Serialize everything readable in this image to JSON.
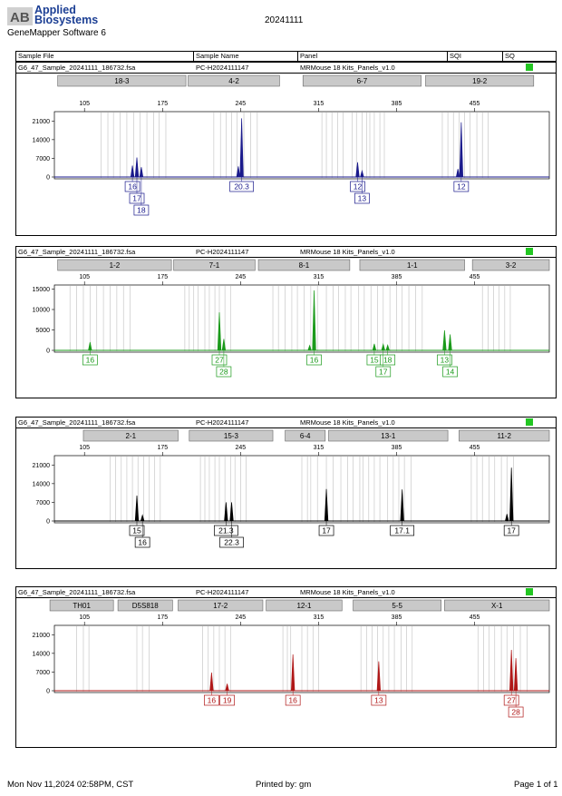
{
  "header": {
    "brand_mark": "AB",
    "brand_line1": "Applied",
    "brand_line2": "Biosystems",
    "software": "GeneMapper Software 6",
    "run_date": "20241111",
    "columns": [
      "Sample File",
      "Sample Name",
      "Panel",
      "SQI",
      "SQ"
    ]
  },
  "footer": {
    "timestamp": "Mon Nov 11,2024 02:58PM, CST",
    "printed_by": "Printed by: gm",
    "page": "Page 1 of 1"
  },
  "colors": {
    "blue": "#1a1a8c",
    "green": "#1b9a1b",
    "black": "#000000",
    "red": "#b01818",
    "status_ok": "#22c622",
    "bin_line": "#c8c8c8"
  },
  "chart_data": [
    {
      "type": "line",
      "dye": "blue",
      "sample_file": "G6_47_Sample_20241111_186732.fsa",
      "sample_name": "PC-H2024111147",
      "panel": "MRMouse 18 Kits_Panels_v1.0",
      "x_ticks": [
        105,
        175,
        245,
        315,
        385,
        455
      ],
      "xlim": [
        78,
        522
      ],
      "y_ticks": [
        0,
        7000,
        14000,
        21000
      ],
      "ylim": [
        0,
        24500
      ],
      "markers": [
        {
          "label": "18-3",
          "start": 81,
          "end": 196
        },
        {
          "label": "4-2",
          "start": 198,
          "end": 280
        },
        {
          "label": "6-7",
          "start": 301,
          "end": 407
        },
        {
          "label": "19-2",
          "start": 411,
          "end": 508
        }
      ],
      "bins": [
        120,
        126,
        131,
        137,
        143,
        149,
        155,
        161,
        167,
        172,
        178,
        221,
        227,
        232,
        237,
        242,
        248,
        254,
        260,
        318,
        322,
        327,
        332,
        337,
        345,
        349,
        354,
        358,
        361,
        365,
        370,
        374,
        426,
        431,
        436,
        441,
        446,
        451,
        457,
        462,
        467
      ],
      "peaks": [
        {
          "x": 148,
          "height": 4300
        },
        {
          "x": 152,
          "height": 7300
        },
        {
          "x": 156,
          "height": 3700
        },
        {
          "x": 243,
          "height": 4000
        },
        {
          "x": 246,
          "height": 22000
        },
        {
          "x": 350,
          "height": 5500
        },
        {
          "x": 354,
          "height": 2300
        },
        {
          "x": 440,
          "height": 3000
        },
        {
          "x": 443,
          "height": 20500
        }
      ],
      "alleles": [
        {
          "label": "16",
          "x": 148,
          "row": 0
        },
        {
          "label": "17",
          "x": 152,
          "row": 1
        },
        {
          "label": "18",
          "x": 156,
          "row": 2
        },
        {
          "label": "20.3",
          "x": 246,
          "row": 0
        },
        {
          "label": "12",
          "x": 350,
          "row": 0
        },
        {
          "label": "13",
          "x": 354,
          "row": 1
        },
        {
          "label": "12",
          "x": 443,
          "row": 0
        }
      ]
    },
    {
      "type": "line",
      "dye": "green",
      "sample_file": "G6_47_Sample_20241111_186732.fsa",
      "sample_name": "PC-H2024111147",
      "panel": "MRMouse 18 Kits_Panels_v1.0",
      "x_ticks": [
        105,
        175,
        245,
        315,
        385,
        455
      ],
      "xlim": [
        78,
        522
      ],
      "y_ticks": [
        0,
        5000,
        10000,
        15000
      ],
      "ylim": [
        0,
        16000
      ],
      "markers": [
        {
          "label": "1-2",
          "start": 81,
          "end": 183
        },
        {
          "label": "7-1",
          "start": 185,
          "end": 258
        },
        {
          "label": "8-1",
          "start": 261,
          "end": 343
        },
        {
          "label": "1-1",
          "start": 352,
          "end": 446
        },
        {
          "label": "3-2",
          "start": 453,
          "end": 578
        }
      ],
      "bins": [
        92,
        98,
        104,
        110,
        116,
        122,
        128,
        134,
        140,
        146,
        195,
        199,
        203,
        207,
        213,
        217,
        222,
        226,
        231,
        236,
        274,
        279,
        285,
        291,
        296,
        302,
        308,
        314,
        322,
        328,
        333,
        339,
        344,
        351,
        356,
        362,
        368,
        373,
        379,
        385,
        390,
        396,
        402,
        408,
        462,
        467,
        472,
        477,
        482,
        487
      ],
      "peaks": [
        {
          "x": 110,
          "height": 2000
        },
        {
          "x": 226,
          "height": 9300
        },
        {
          "x": 230,
          "height": 2800
        },
        {
          "x": 307,
          "height": 1200
        },
        {
          "x": 311,
          "height": 14700
        },
        {
          "x": 365,
          "height": 1600
        },
        {
          "x": 373,
          "height": 1500
        },
        {
          "x": 377,
          "height": 1300
        },
        {
          "x": 428,
          "height": 4900
        },
        {
          "x": 433,
          "height": 3900
        }
      ],
      "alleles": [
        {
          "label": "16",
          "x": 110,
          "row": 0
        },
        {
          "label": "27",
          "x": 226,
          "row": 0
        },
        {
          "label": "28",
          "x": 230,
          "row": 1
        },
        {
          "label": "16",
          "x": 311,
          "row": 0
        },
        {
          "label": "15",
          "x": 365,
          "row": 0
        },
        {
          "label": "18",
          "x": 377,
          "row": 0
        },
        {
          "label": "17",
          "x": 373,
          "row": 1
        },
        {
          "label": "13",
          "x": 428,
          "row": 0
        },
        {
          "label": "14",
          "x": 433,
          "row": 1
        }
      ]
    },
    {
      "type": "line",
      "dye": "black",
      "sample_file": "G6_47_Sample_20241111_186732.fsa",
      "sample_name": "PC-H2024111147",
      "panel": "MRMouse 18 Kits_Panels_v1.0",
      "x_ticks": [
        105,
        175,
        245,
        315,
        385,
        455
      ],
      "xlim": [
        78,
        522
      ],
      "y_ticks": [
        0,
        7000,
        14000,
        21000
      ],
      "ylim": [
        0,
        24500
      ],
      "markers": [
        {
          "label": "2-1",
          "start": 104,
          "end": 189
        },
        {
          "label": "15-3",
          "start": 199,
          "end": 274
        },
        {
          "label": "6-4",
          "start": 285,
          "end": 321
        },
        {
          "label": "13-1",
          "start": 324,
          "end": 431
        },
        {
          "label": "11-2",
          "start": 441,
          "end": 574
        }
      ],
      "bins": [
        128,
        133,
        138,
        143,
        148,
        153,
        158,
        163,
        168,
        173,
        209,
        213,
        217,
        222,
        226,
        231,
        236,
        240,
        245,
        250,
        300,
        305,
        308,
        314,
        322,
        328,
        335,
        341,
        346,
        352,
        355,
        360,
        365,
        370,
        377,
        382,
        387,
        392,
        398,
        452,
        457,
        462,
        468,
        473,
        479,
        484,
        490
      ],
      "peaks": [
        {
          "x": 152,
          "height": 9500
        },
        {
          "x": 157,
          "height": 2200
        },
        {
          "x": 232,
          "height": 7000
        },
        {
          "x": 237,
          "height": 7000
        },
        {
          "x": 322,
          "height": 12000
        },
        {
          "x": 390,
          "height": 11800
        },
        {
          "x": 484,
          "height": 2600
        },
        {
          "x": 488,
          "height": 20000
        }
      ],
      "alleles": [
        {
          "label": "15",
          "x": 152,
          "row": 0
        },
        {
          "label": "16",
          "x": 157,
          "row": 1
        },
        {
          "label": "21.3",
          "x": 232,
          "row": 0
        },
        {
          "label": "22.3",
          "x": 237,
          "row": 1
        },
        {
          "label": "17",
          "x": 322,
          "row": 0
        },
        {
          "label": "17.1",
          "x": 390,
          "row": 0
        },
        {
          "label": "17",
          "x": 488,
          "row": 0
        }
      ]
    },
    {
      "type": "line",
      "dye": "red",
      "sample_file": "G6_47_Sample_20241111_186732.fsa",
      "sample_name": "PC-H2024111147",
      "panel": "MRMouse 18 Kits_Panels_v1.0",
      "x_ticks": [
        105,
        175,
        245,
        315,
        385,
        455
      ],
      "xlim": [
        78,
        522
      ],
      "y_ticks": [
        0,
        7000,
        14000,
        21000
      ],
      "ylim": [
        0,
        24500
      ],
      "markers": [
        {
          "label": "TH01",
          "start": 74,
          "end": 131
        },
        {
          "label": "D5S818",
          "start": 135,
          "end": 184
        },
        {
          "label": "17-2",
          "start": 189,
          "end": 265
        },
        {
          "label": "12-1",
          "start": 268,
          "end": 336
        },
        {
          "label": "5-5",
          "start": 346,
          "end": 425
        },
        {
          "label": "X-1",
          "start": 428,
          "end": 575
        }
      ],
      "bins": [
        98,
        104,
        109,
        152,
        157,
        163,
        211,
        216,
        221,
        226,
        231,
        236,
        283,
        287,
        290,
        300,
        305,
        310,
        315,
        353,
        358,
        363,
        368,
        373,
        378,
        383,
        389,
        394,
        399,
        458,
        463,
        468,
        473,
        479,
        484,
        490,
        496,
        502
      ],
      "peaks": [
        {
          "x": 219,
          "height": 6800
        },
        {
          "x": 233,
          "height": 2600
        },
        {
          "x": 292,
          "height": 13600
        },
        {
          "x": 369,
          "height": 11000
        },
        {
          "x": 488,
          "height": 15300
        },
        {
          "x": 492,
          "height": 12200
        }
      ],
      "alleles": [
        {
          "label": "16",
          "x": 219,
          "row": 0
        },
        {
          "label": "19",
          "x": 233,
          "row": 0
        },
        {
          "label": "16",
          "x": 292,
          "row": 0
        },
        {
          "label": "13",
          "x": 369,
          "row": 0
        },
        {
          "label": "27",
          "x": 488,
          "row": 0
        },
        {
          "label": "28",
          "x": 492,
          "row": 1
        }
      ]
    }
  ]
}
